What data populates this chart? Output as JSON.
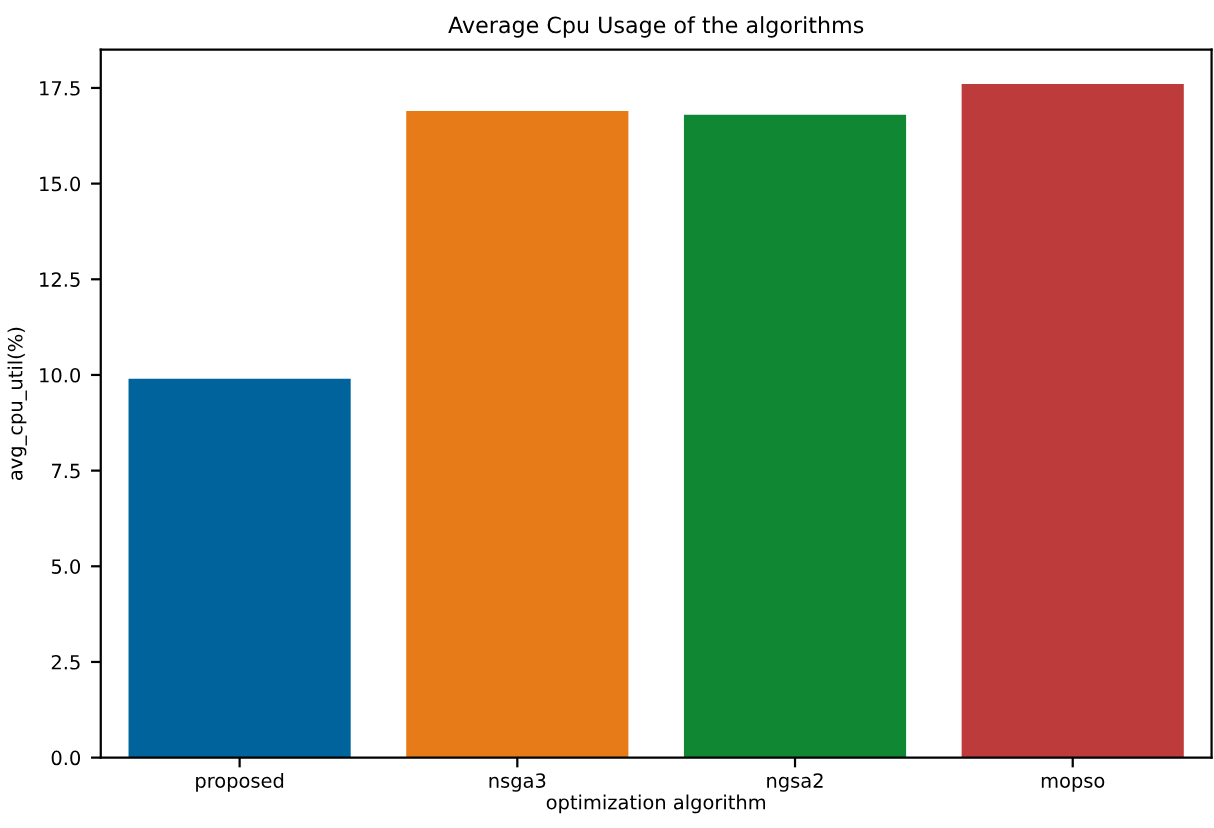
{
  "chart_data": {
    "type": "bar",
    "title": "Average Cpu Usage of the algorithms",
    "xlabel": "optimization algorithm",
    "ylabel": "avg_cpu_util(%)",
    "categories": [
      "proposed",
      "nsga3",
      "ngsa2",
      "mopso"
    ],
    "values": [
      9.9,
      16.9,
      16.8,
      17.6
    ],
    "colors": [
      "#01639c",
      "#e67b17",
      "#108733",
      "#bd3b3b"
    ],
    "ylim": [
      0,
      18.5
    ],
    "yticks": [
      {
        "value": 0,
        "label": "0.0"
      },
      {
        "value": 2.5,
        "label": "2.5"
      },
      {
        "value": 5,
        "label": "5.0"
      },
      {
        "value": 7.5,
        "label": "7.5"
      },
      {
        "value": 10,
        "label": "10.0"
      },
      {
        "value": 12.5,
        "label": "12.5"
      },
      {
        "value": 15,
        "label": "15.0"
      },
      {
        "value": 17.5,
        "label": "17.5"
      }
    ],
    "grid": false,
    "legend": false
  }
}
